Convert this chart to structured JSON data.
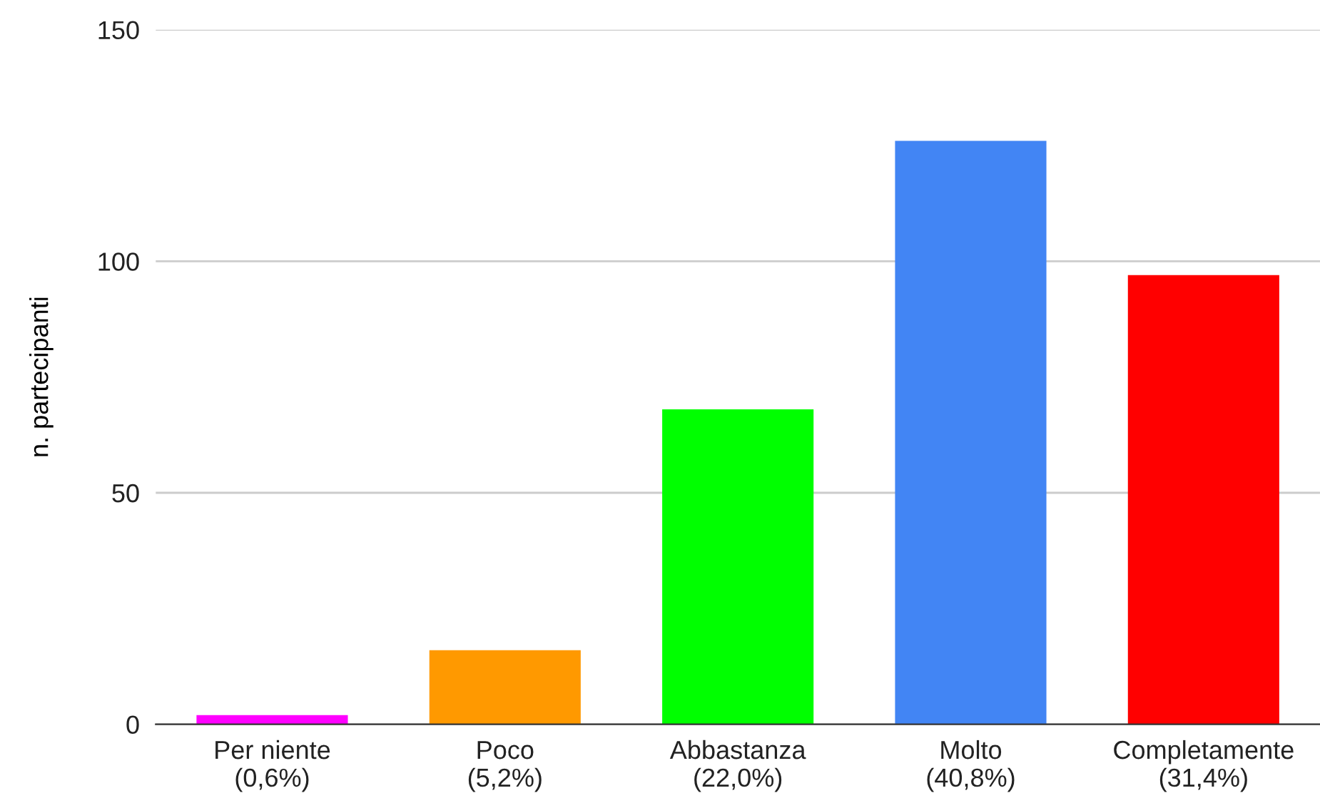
{
  "chart_data": {
    "type": "bar",
    "ylabel": "n. partecipanti",
    "categories": [
      "Per niente\n(0,6%)",
      "Poco\n(5,2%)",
      "Abbastanza\n(22,0%)",
      "Molto\n(40,8%)",
      "Completamente\n(31,4%)"
    ],
    "values": [
      2,
      16,
      68,
      126,
      97
    ],
    "colors": [
      "#ff00ff",
      "#ff9900",
      "#00ff00",
      "#4285f4",
      "#ff0000"
    ],
    "ylim": [
      0,
      150
    ],
    "yticks": [
      0,
      50,
      100,
      150
    ],
    "grid": "y"
  }
}
